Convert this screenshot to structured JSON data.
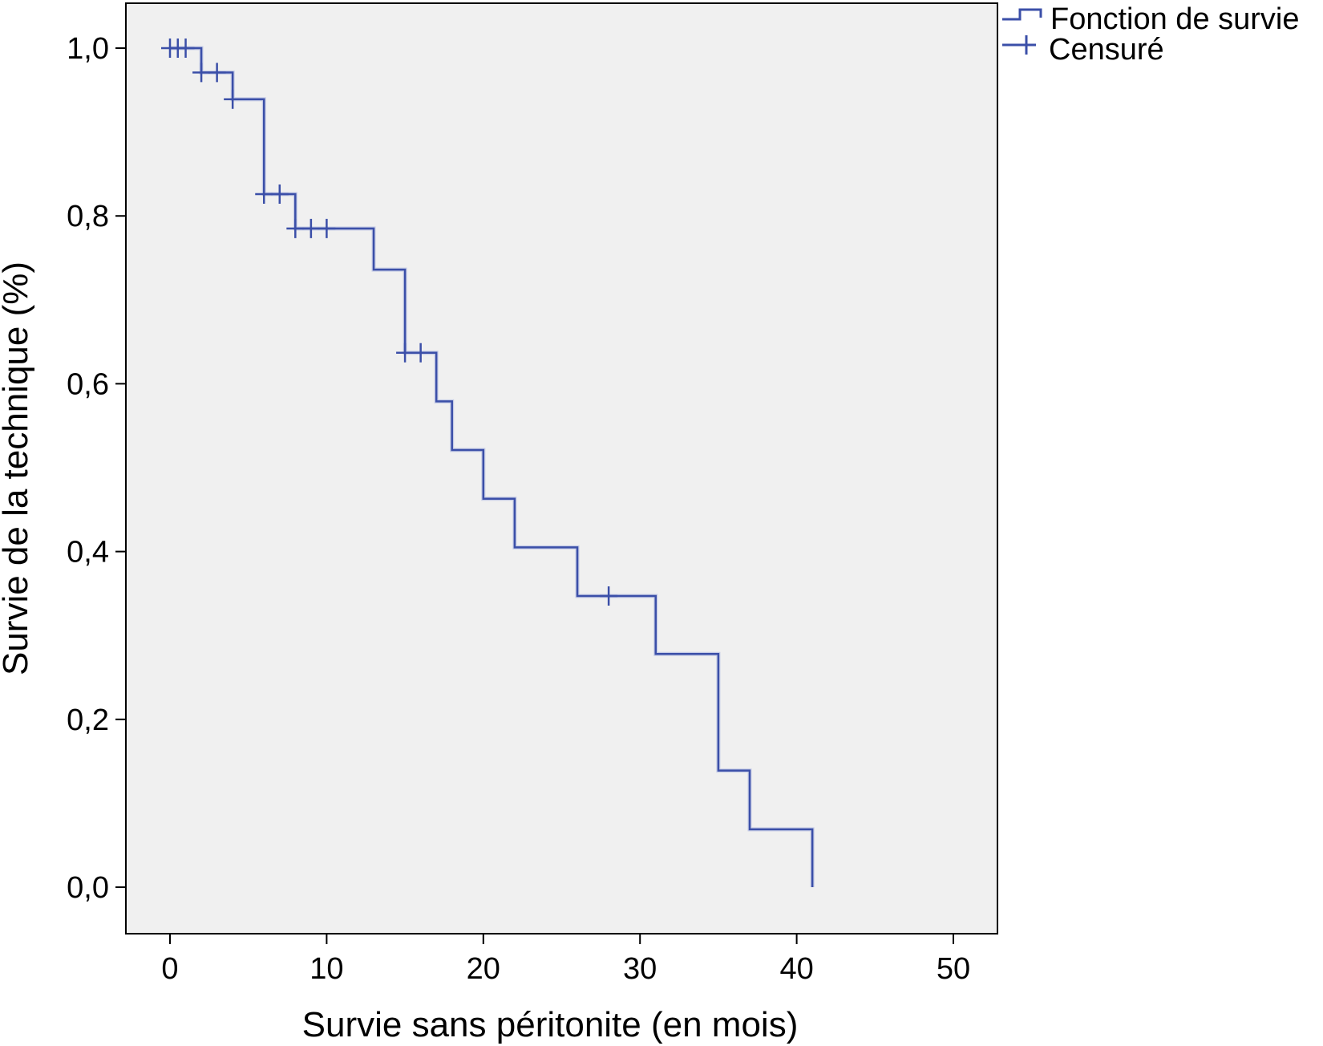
{
  "chart_data": {
    "type": "line",
    "subtype": "kaplan-meier-step",
    "xlabel": "Survie sans péritonite (en mois)",
    "ylabel": "Survie de la technique (%)",
    "xlim": [
      0,
      50
    ],
    "ylim": [
      0,
      1
    ],
    "xticks": [
      0,
      10,
      20,
      30,
      40,
      50
    ],
    "xtick_labels": [
      "0",
      "10",
      "20",
      "30",
      "40",
      "50"
    ],
    "yticks": [
      0,
      0.2,
      0.4,
      0.6,
      0.8,
      1.0
    ],
    "ytick_labels": [
      "0,0",
      "0,2",
      "0,4",
      "0,6",
      "0,8",
      "1,0"
    ],
    "grid": false,
    "legend_position": "top-right, outside plot",
    "colors": {
      "line": "#3b4fa8",
      "plot_background": "#f0f0f0"
    },
    "series": [
      {
        "name": "Fonction de survie",
        "steps": [
          [
            0,
            1.0
          ],
          [
            2,
            0.971
          ],
          [
            4,
            0.939
          ],
          [
            6,
            0.826
          ],
          [
            8,
            0.785
          ],
          [
            13,
            0.736
          ],
          [
            15,
            0.637
          ],
          [
            17,
            0.579
          ],
          [
            18,
            0.521
          ],
          [
            20,
            0.463
          ],
          [
            22,
            0.405
          ],
          [
            26,
            0.347
          ],
          [
            31,
            0.278
          ],
          [
            35,
            0.139
          ],
          [
            37,
            0.069
          ],
          [
            41,
            0.0
          ]
        ]
      },
      {
        "name": "Censuré",
        "points": [
          [
            0,
            1.0
          ],
          [
            0.5,
            1.0
          ],
          [
            1,
            1.0
          ],
          [
            2,
            0.971
          ],
          [
            3,
            0.971
          ],
          [
            4,
            0.939
          ],
          [
            6,
            0.826
          ],
          [
            7,
            0.826
          ],
          [
            8,
            0.785
          ],
          [
            9,
            0.785
          ],
          [
            10,
            0.785
          ],
          [
            15,
            0.637
          ],
          [
            16,
            0.637
          ],
          [
            28,
            0.347
          ]
        ]
      }
    ]
  }
}
